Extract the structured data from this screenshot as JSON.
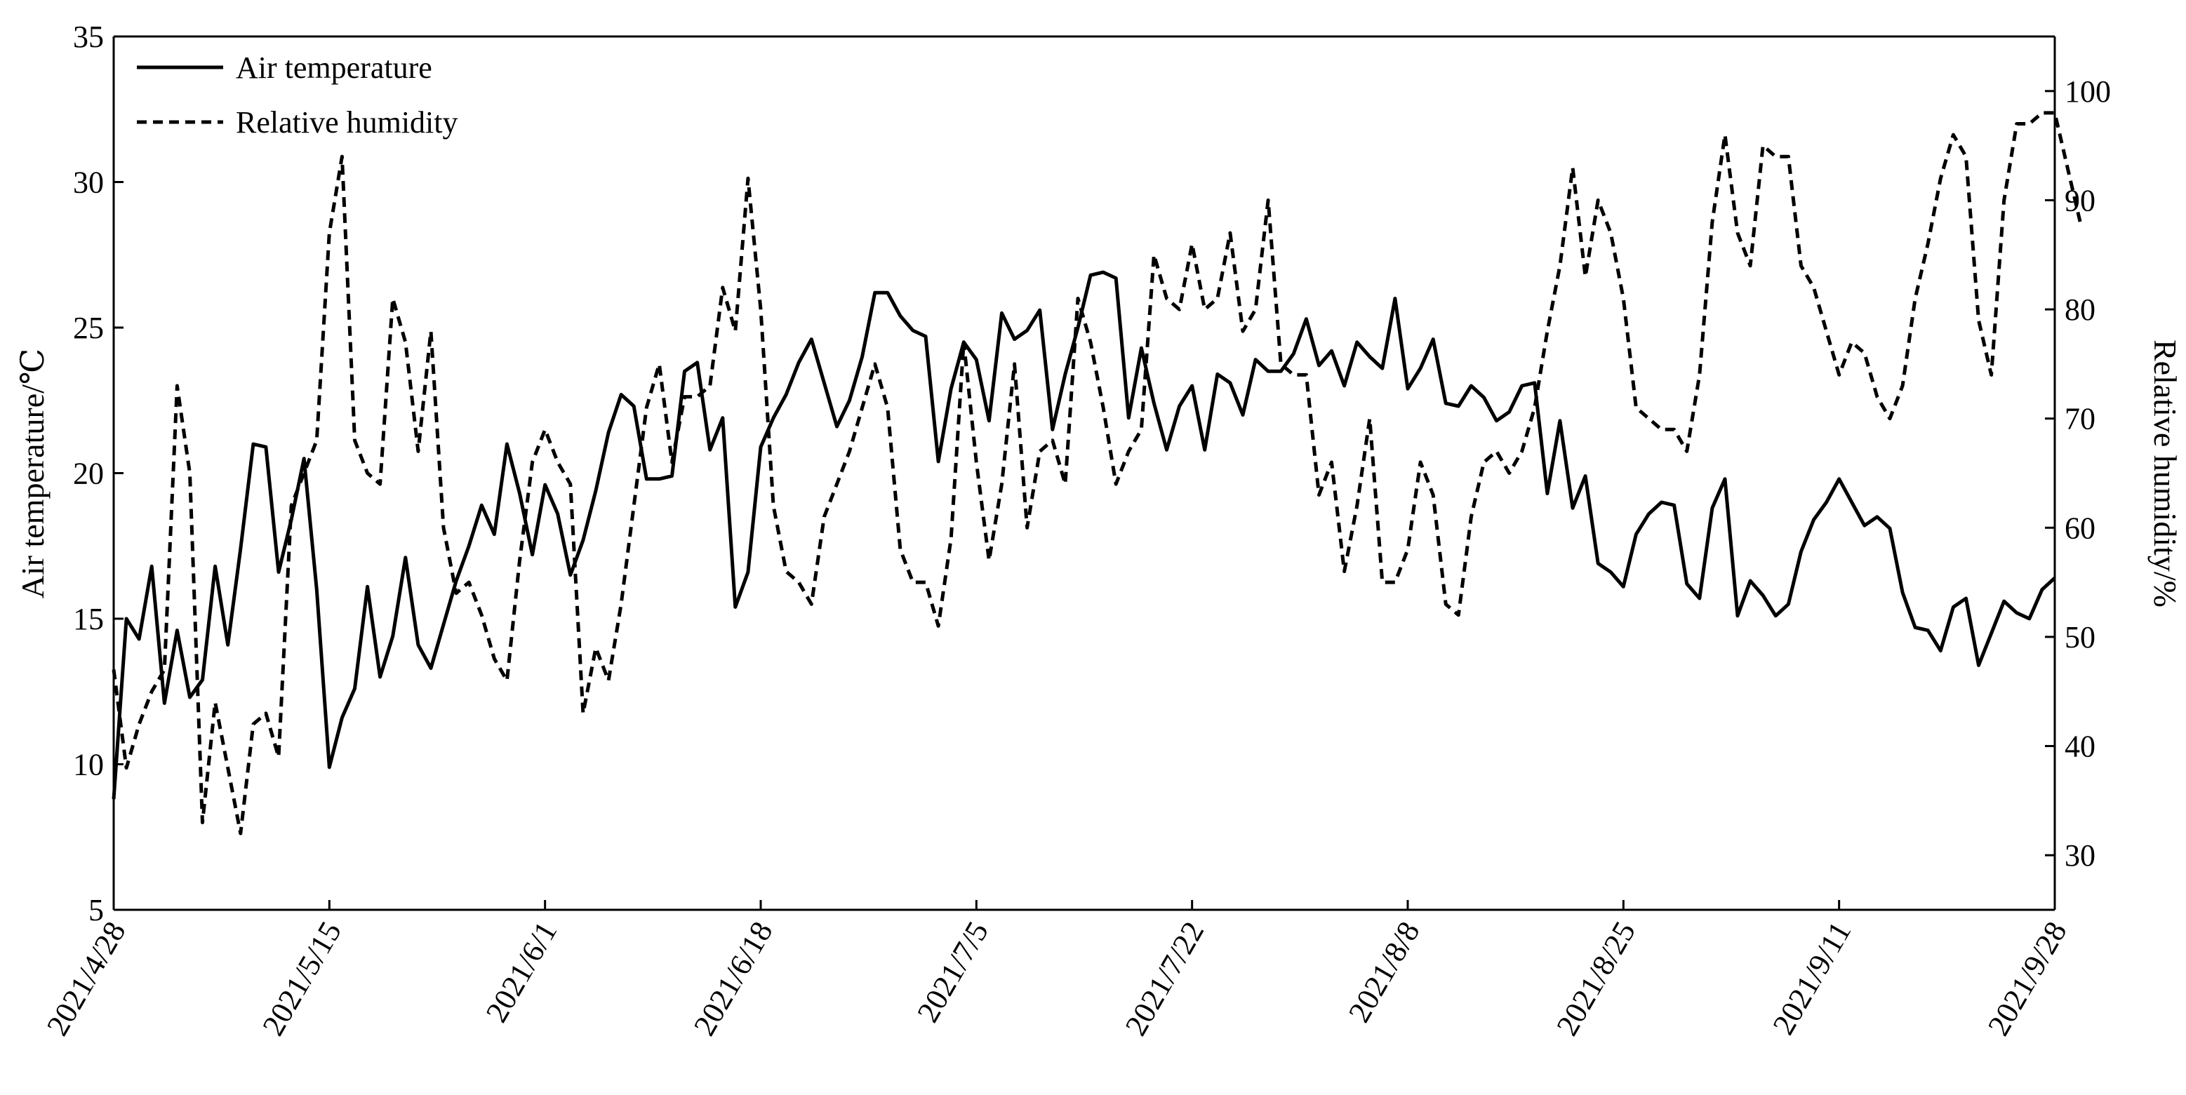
{
  "chart_data": {
    "type": "line",
    "title": "",
    "xlabel": "",
    "ylabel": "Air temperature/℃",
    "y2label": "Relative humidity/%",
    "x_start": "2021/4/28",
    "x_end": "2021/9/28",
    "x_ticks": [
      "2021/4/28",
      "2021/5/15",
      "2021/6/1",
      "2021/6/18",
      "2021/7/5",
      "2021/7/22",
      "2021/8/8",
      "2021/8/25",
      "2021/9/11",
      "2021/9/28"
    ],
    "ylim": [
      5,
      35
    ],
    "y_ticks": [
      "5",
      "10",
      "15",
      "20",
      "25",
      "30",
      "35"
    ],
    "y2lim": [
      25,
      105
    ],
    "y2_ticks": [
      "30",
      "40",
      "50",
      "60",
      "70",
      "80",
      "90",
      "100"
    ],
    "grid": false,
    "legend": "top-left",
    "series": [
      {
        "name": "Air temperature",
        "axis": "left",
        "style": "solid",
        "color": "#000000",
        "values": [
          8.8,
          15.0,
          14.3,
          16.8,
          12.1,
          14.6,
          12.3,
          12.9,
          16.8,
          14.1,
          17.4,
          21.0,
          20.9,
          16.6,
          18.4,
          20.5,
          16.0,
          9.9,
          11.6,
          12.6,
          16.1,
          13.0,
          14.4,
          17.1,
          14.1,
          13.3,
          14.8,
          16.3,
          17.5,
          18.9,
          17.9,
          21.0,
          19.3,
          17.2,
          19.6,
          18.6,
          16.5,
          17.7,
          19.4,
          21.4,
          22.7,
          22.3,
          19.8,
          19.8,
          19.9,
          23.5,
          23.8,
          20.8,
          21.9,
          15.4,
          16.6,
          20.9,
          21.9,
          22.7,
          23.8,
          24.6,
          23.1,
          21.6,
          22.5,
          24.0,
          26.2,
          26.2,
          25.4,
          24.9,
          24.7,
          20.4,
          22.9,
          24.5,
          23.9,
          21.8,
          25.5,
          24.6,
          24.9,
          25.6,
          21.5,
          23.4,
          25.0,
          26.8,
          26.9,
          26.7,
          21.9,
          24.3,
          22.4,
          20.8,
          22.3,
          23.0,
          20.8,
          23.4,
          23.1,
          22.0,
          23.9,
          23.5,
          23.5,
          24.1,
          25.3,
          23.7,
          24.2,
          23.0,
          24.5,
          24.0,
          23.6,
          26.0,
          22.9,
          23.6,
          24.6,
          22.4,
          22.3,
          23.0,
          22.6,
          21.8,
          22.1,
          23.0,
          23.1,
          19.3,
          21.8,
          18.8,
          19.9,
          16.9,
          16.6,
          16.1,
          17.9,
          18.6,
          19.0,
          18.9,
          16.2,
          15.7,
          18.8,
          19.8,
          15.1,
          16.3,
          15.8,
          15.1,
          15.5,
          17.3,
          18.4,
          19.0,
          19.8,
          19.0,
          18.2,
          18.5,
          18.1,
          15.9,
          14.7,
          14.6,
          13.9,
          15.4,
          15.7,
          13.4,
          14.5,
          15.6,
          15.2,
          15.0,
          16.0,
          16.4
        ]
      },
      {
        "name": "Relative humidity",
        "axis": "right",
        "style": "dashed",
        "color": "#000000",
        "values": [
          47,
          38,
          42,
          45,
          47,
          73,
          65,
          33,
          44,
          38,
          32,
          42,
          43,
          39,
          62,
          65,
          68,
          87,
          94,
          68,
          65,
          64,
          81,
          77,
          67,
          78,
          60,
          54,
          55,
          52,
          48,
          46,
          57,
          66,
          69,
          66,
          64,
          43,
          49,
          46,
          53,
          62,
          71,
          75,
          66,
          72,
          72,
          73,
          82,
          78,
          92,
          80,
          62,
          56,
          55,
          53,
          61,
          64,
          67,
          71,
          75,
          71,
          58,
          55,
          55,
          51,
          59,
          77,
          66,
          57,
          64,
          75,
          60,
          67,
          68,
          64,
          81,
          77,
          71,
          64,
          67,
          69,
          85,
          81,
          80,
          86,
          80,
          81,
          87,
          78,
          80,
          90,
          75,
          74,
          74,
          63,
          66,
          56,
          62,
          70,
          55,
          55,
          58,
          66,
          63,
          53,
          52,
          61,
          66,
          67,
          65,
          67,
          71,
          78,
          84,
          93,
          83,
          90,
          87,
          81,
          71,
          70,
          69,
          69,
          67,
          74,
          88,
          96,
          87,
          84,
          95,
          94,
          94,
          84,
          82,
          78,
          74,
          77,
          76,
          72,
          70,
          73,
          81,
          86,
          92,
          96,
          94,
          79,
          74,
          90,
          97,
          97,
          98,
          98,
          93,
          88
        ]
      }
    ]
  }
}
